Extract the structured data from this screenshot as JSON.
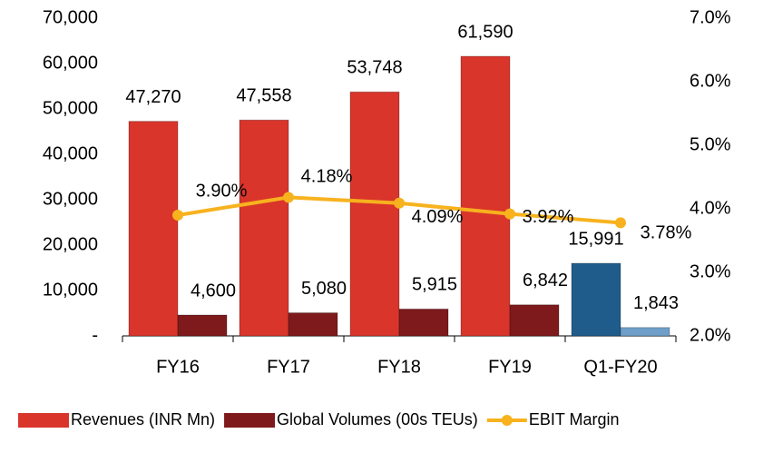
{
  "chart_data": {
    "type": "bar",
    "categories": [
      "FY16",
      "FY17",
      "FY18",
      "FY19",
      "Q1-FY20"
    ],
    "series": [
      {
        "name": "Revenues (INR Mn)",
        "color": "#d9352b",
        "colors": [
          "#d9352b",
          "#d9352b",
          "#d9352b",
          "#d9352b",
          "#1f5c8c"
        ],
        "values": [
          47270,
          47558,
          53748,
          61590,
          15991
        ],
        "value_labels": [
          "47,270",
          "47,558",
          "53,748",
          "61,590",
          "15,991"
        ]
      },
      {
        "name": "Global Volumes (00s TEUs)",
        "color": "#7e1a1c",
        "colors": [
          "#7e1a1c",
          "#7e1a1c",
          "#7e1a1c",
          "#7e1a1c",
          "#6f9fc8"
        ],
        "values": [
          4600,
          5080,
          5915,
          6842,
          1843
        ],
        "value_labels": [
          "4,600",
          "5,080",
          "5,915",
          "6,842",
          "1,843"
        ]
      },
      {
        "name": "EBIT Margin",
        "type": "line",
        "axis": "y2",
        "color": "#f7b21e",
        "values": [
          3.9,
          4.18,
          4.09,
          3.92,
          3.78
        ],
        "value_labels": [
          "3.90%",
          "4.18%",
          "4.09%",
          "3.92%",
          "3.78%"
        ]
      }
    ],
    "ylim": [
      0,
      70000
    ],
    "yticks": [
      {
        "value": 0,
        "label": "-"
      },
      {
        "value": 10000,
        "label": "10,000"
      },
      {
        "value": 20000,
        "label": "20,000"
      },
      {
        "value": 30000,
        "label": "30,000"
      },
      {
        "value": 40000,
        "label": "40,000"
      },
      {
        "value": 50000,
        "label": "50,000"
      },
      {
        "value": 60000,
        "label": "60,000"
      },
      {
        "value": 70000,
        "label": "70,000"
      }
    ],
    "y2lim": [
      2.0,
      7.0
    ],
    "y2ticks": [
      {
        "value": 2.0,
        "label": "2.0%"
      },
      {
        "value": 3.0,
        "label": "3.0%"
      },
      {
        "value": 4.0,
        "label": "4.0%"
      },
      {
        "value": 5.0,
        "label": "5.0%"
      },
      {
        "value": 6.0,
        "label": "6.0%"
      },
      {
        "value": 7.0,
        "label": "7.0%"
      }
    ],
    "legend": "bottom"
  }
}
